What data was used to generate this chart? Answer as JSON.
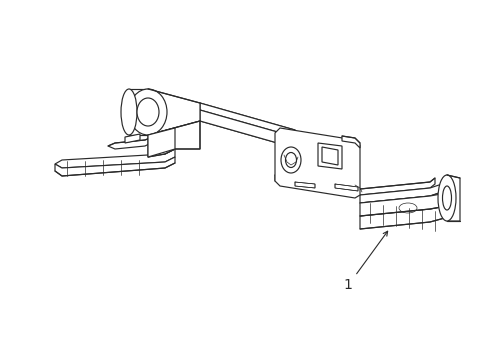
{
  "background_color": "#ffffff",
  "line_color": "#2a2a2a",
  "line_width": 0.85,
  "thin_lw": 0.5,
  "label_text": "1",
  "label_fontsize": 10,
  "figsize": [
    4.89,
    3.6
  ],
  "dpi": 100
}
